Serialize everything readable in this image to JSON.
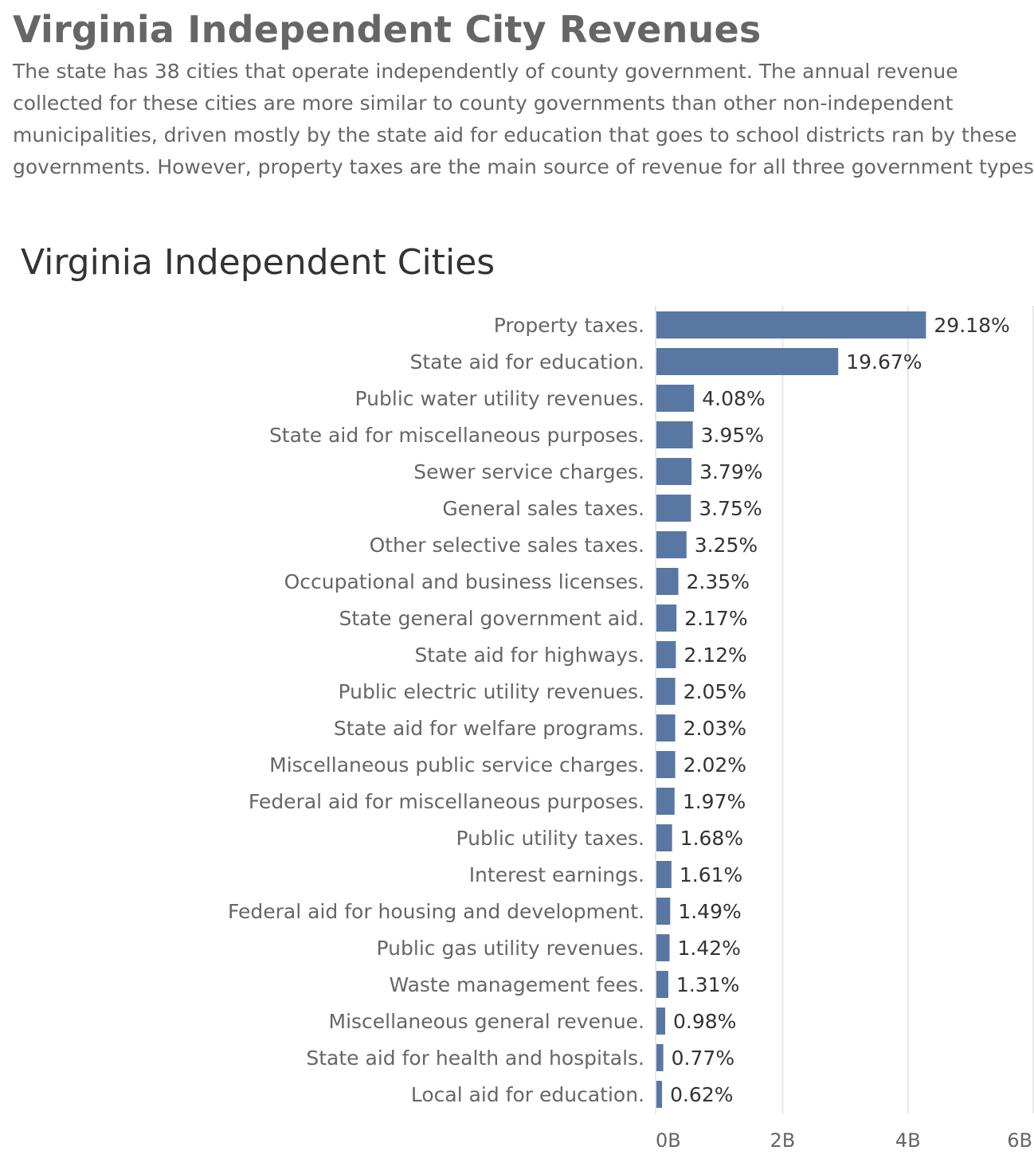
{
  "header": {
    "title": "Virginia Independent City Revenues",
    "description_lines": [
      "The state has 38 cities that operate independently of county government. The annual revenue",
      "collected for these cities are more similar to county governments than other non-independent",
      "municipalities, driven mostly by the state aid for education that goes to school districts ran by these",
      "governments. However, property taxes are the main source of revenue for all three government types."
    ]
  },
  "colors": {
    "bar": "#5977a3",
    "gridline": "#e6e6e6",
    "text": "#666666"
  },
  "chart_data": {
    "type": "bar",
    "orientation": "horizontal",
    "title": "Virginia Independent Cities",
    "xlabel": "",
    "ylabel": "",
    "xlim": [
      0,
      6
    ],
    "x_ticks": [
      "0B",
      "2B",
      "4B",
      "6B"
    ],
    "x_tick_values": [
      0,
      2,
      4,
      6
    ],
    "grid": "vertical",
    "categories": [
      "Property taxes.",
      "State aid for education.",
      "Public water utility revenues.",
      "State aid for miscellaneous purposes.",
      "Sewer service charges.",
      "General sales taxes.",
      "Other selective sales taxes.",
      "Occupational and business licenses.",
      "State general government aid.",
      "State aid for highways.",
      "Public electric utility revenues.",
      "State aid for welfare programs.",
      "Miscellaneous public service charges.",
      "Federal aid for miscellaneous purposes.",
      "Public utility taxes.",
      "Interest earnings.",
      "Federal aid for housing and development.",
      "Public gas utility revenues.",
      "Waste management fees.",
      "Miscellaneous general revenue.",
      "State aid for health and hospitals.",
      "Local aid for education."
    ],
    "values_billions": [
      4.3,
      2.9,
      0.6,
      0.58,
      0.56,
      0.55,
      0.48,
      0.35,
      0.32,
      0.31,
      0.3,
      0.3,
      0.3,
      0.29,
      0.25,
      0.24,
      0.22,
      0.21,
      0.19,
      0.14,
      0.11,
      0.09
    ],
    "data_labels": [
      "29.18%",
      "19.67%",
      "4.08%",
      "3.95%",
      "3.79%",
      "3.75%",
      "3.25%",
      "2.35%",
      "2.17%",
      "2.12%",
      "2.05%",
      "2.03%",
      "2.02%",
      "1.97%",
      "1.68%",
      "1.61%",
      "1.49%",
      "1.42%",
      "1.31%",
      "0.98%",
      "0.77%",
      "0.62%"
    ]
  }
}
